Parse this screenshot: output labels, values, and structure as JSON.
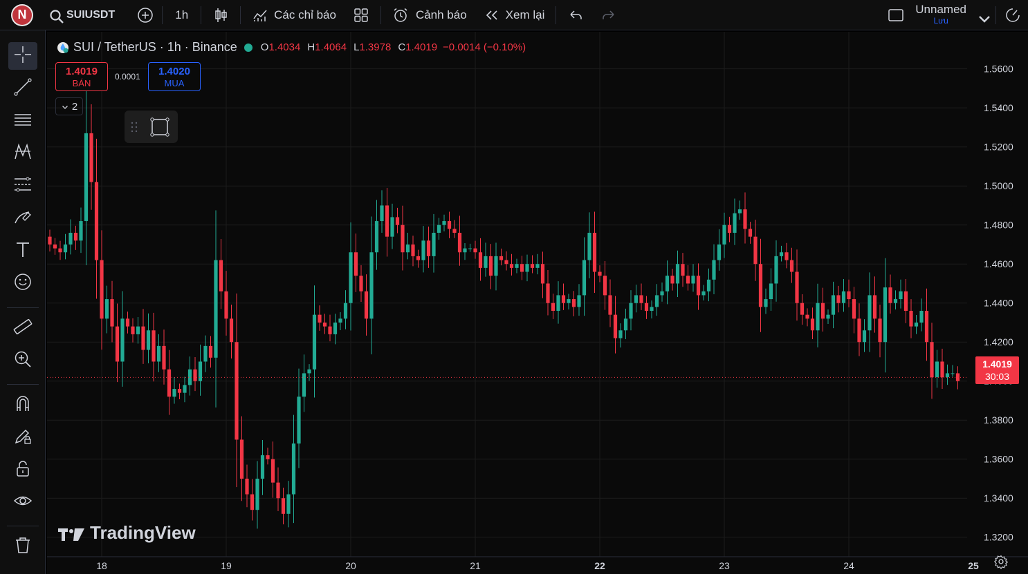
{
  "topbar": {
    "avatar_letter": "N",
    "symbol": "SUIUSDT",
    "interval": "1h",
    "indicators_label": "Các chỉ báo",
    "alerts_label": "Cảnh báo",
    "replay_label": "Xem lại",
    "layout_name": "Unnamed",
    "save_label": "Lưu"
  },
  "legend": {
    "title": "SUI / TetherUS · 1h · Binance",
    "o_label": "O",
    "o_value": "1.4034",
    "h_label": "H",
    "h_value": "1.4064",
    "l_label": "L",
    "l_value": "1.3978",
    "c_label": "C",
    "c_value": "1.4019",
    "change": "−0.0014 (−0.10%)"
  },
  "trade": {
    "sell_price": "1.4019",
    "sell_label": "BÁN",
    "spread": "0.0001",
    "buy_price": "1.4020",
    "buy_label": "MUA",
    "collapse_count": "2"
  },
  "price_tag": {
    "price": "1.4019",
    "countdown": "30:03"
  },
  "watermark": "TradingView",
  "colors": {
    "up": "#22ab94",
    "down": "#f23645",
    "bg": "#0a0a0a",
    "grid": "#1c1c1c"
  },
  "chart_data": {
    "type": "candlestick",
    "y_ticks": [
      "1.5600",
      "1.5400",
      "1.5200",
      "1.5000",
      "1.4800",
      "1.4600",
      "1.4400",
      "1.4200",
      "1.4000",
      "1.3800",
      "1.3600",
      "1.3400",
      "1.3200"
    ],
    "y_range": [
      1.31,
      1.579
    ],
    "x_ticks": [
      "18",
      "19",
      "20",
      "21",
      "22",
      "23",
      "24",
      "25"
    ],
    "last_price": 1.4019,
    "closes": [
      1.47,
      1.468,
      1.466,
      1.47,
      1.476,
      1.472,
      1.482,
      1.527,
      1.502,
      1.462,
      1.432,
      1.442,
      1.428,
      1.41,
      1.432,
      1.428,
      1.424,
      1.428,
      1.416,
      1.426,
      1.41,
      1.418,
      1.406,
      1.392,
      1.396,
      1.394,
      1.398,
      1.406,
      1.4,
      1.41,
      1.418,
      1.412,
      1.462,
      1.446,
      1.432,
      1.42,
      1.37,
      1.35,
      1.342,
      1.334,
      1.35,
      1.362,
      1.36,
      1.348,
      1.34,
      1.332,
      1.342,
      1.368,
      1.392,
      1.404,
      1.406,
      1.434,
      1.43,
      1.428,
      1.424,
      1.43,
      1.432,
      1.44,
      1.466,
      1.454,
      1.446,
      1.432,
      1.466,
      1.482,
      1.49,
      1.474,
      1.484,
      1.48,
      1.466,
      1.47,
      1.464,
      1.462,
      1.472,
      1.464,
      1.476,
      1.48,
      1.482,
      1.478,
      1.476,
      1.466,
      1.468,
      1.468,
      1.466,
      1.458,
      1.464,
      1.454,
      1.464,
      1.462,
      1.46,
      1.458,
      1.46,
      1.456,
      1.46,
      1.458,
      1.46,
      1.45,
      1.44,
      1.436,
      1.444,
      1.44,
      1.442,
      1.438,
      1.444,
      1.462,
      1.476,
      1.456,
      1.454,
      1.444,
      1.434,
      1.422,
      1.426,
      1.432,
      1.44,
      1.444,
      1.44,
      1.436,
      1.438,
      1.444,
      1.446,
      1.454,
      1.45,
      1.46,
      1.454,
      1.45,
      1.454,
      1.444,
      1.446,
      1.452,
      1.462,
      1.47,
      1.48,
      1.476,
      1.486,
      1.488,
      1.478,
      1.474,
      1.46,
      1.438,
      1.442,
      1.45,
      1.464,
      1.466,
      1.462,
      1.456,
      1.44,
      1.434,
      1.432,
      1.426,
      1.44,
      1.432,
      1.434,
      1.444,
      1.44,
      1.446,
      1.442,
      1.432,
      1.42,
      1.426,
      1.444,
      1.432,
      1.42,
      1.448,
      1.44,
      1.442,
      1.446,
      1.436,
      1.428,
      1.43,
      1.436,
      1.42,
      1.402,
      1.41,
      1.402,
      1.404,
      1.404,
      1.4
    ]
  }
}
